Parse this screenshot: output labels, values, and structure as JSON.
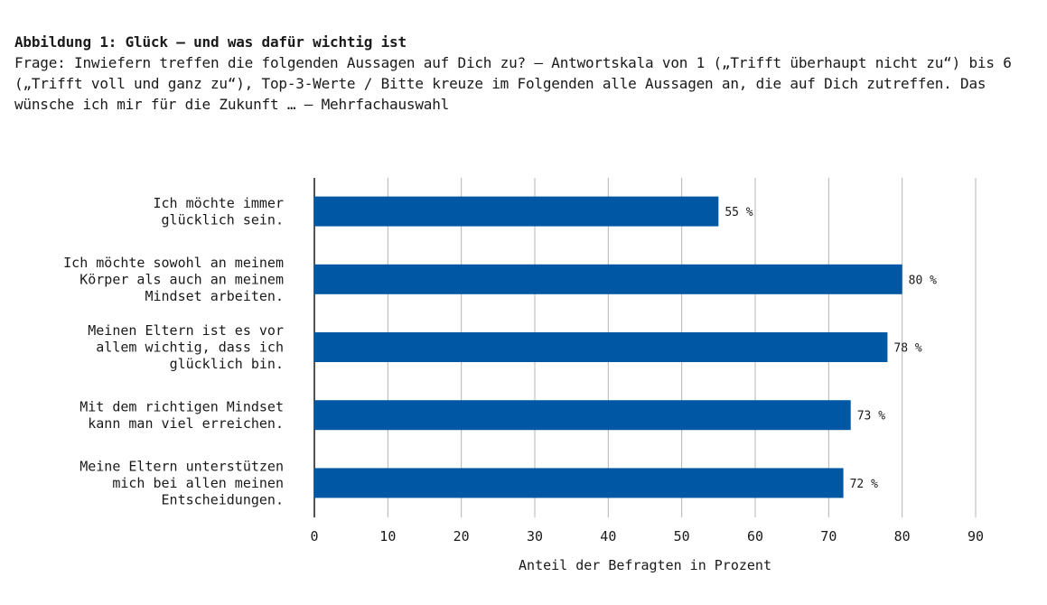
{
  "header": {
    "title": "Abbildung 1: Glück – und was dafür wichtig ist",
    "subtitle": "Frage: Inwiefern treffen die folgenden Aussagen auf Dich zu? – Antwortskala von 1 („Trifft überhaupt nicht zu“) bis 6 („Trifft voll und ganz zu“), Top-3-Werte / Bitte kreuze im Folgenden alle Aussagen an, die auf Dich zutreffen. Das wünsche ich mir für die Zukunft … – Mehrfachauswahl"
  },
  "colors": {
    "bar": "#0057a3",
    "grid": "#b4b4b4",
    "axis": "#1a1a1a"
  },
  "chart_data": {
    "type": "bar",
    "orientation": "horizontal",
    "title": "Abbildung 1: Glück – und was dafür wichtig ist",
    "xlabel": "Anteil der Befragten in Prozent",
    "ylabel": "",
    "xlim": [
      0,
      90
    ],
    "xticks": [
      0,
      10,
      20,
      30,
      40,
      50,
      60,
      70,
      80,
      90
    ],
    "grid": true,
    "value_suffix": " %",
    "categories": [
      [
        "Ich möchte immer",
        "glücklich sein."
      ],
      [
        "Ich möchte sowohl an meinem",
        "Körper als auch an meinem",
        "Mindset arbeiten."
      ],
      [
        "Meinen Eltern ist es vor",
        "allem wichtig, dass ich",
        "glücklich bin."
      ],
      [
        "Mit dem richtigen Mindset",
        "kann man viel erreichen."
      ],
      [
        "Meine Eltern unterstützen",
        "mich bei allen meinen",
        "Entscheidungen."
      ]
    ],
    "values": [
      55,
      80,
      78,
      73,
      72
    ],
    "value_labels": [
      "55 %",
      "80 %",
      "78 %",
      "73 %",
      "72 %"
    ]
  }
}
